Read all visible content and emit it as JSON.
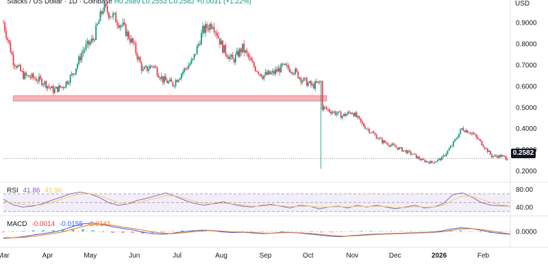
{
  "header": {
    "symbol": "Stacks / US Dollar · 1D · Coinbase",
    "ohlc": "H0.2689  L0.2553  C0.2582  +0.0031 (+1.22%)",
    "currency": "USD"
  },
  "rsi": {
    "label": "RSI",
    "value": "41.86",
    "ma": "41.96"
  },
  "macd": {
    "label": "MACD",
    "hist": "-0.0014",
    "macd": "-0.0155",
    "signal": "-0.0141"
  },
  "last_price": "0.2582",
  "chart_data": [
    {
      "type": "candlestick",
      "name": "price",
      "y_ticks": [
        "0.9000",
        "0.8000",
        "0.7000",
        "0.6000",
        "0.5000",
        "0.4000",
        "0.3000",
        "0.2000"
      ],
      "ylim": [
        0.16,
        1.0
      ],
      "x_ticks": [
        "Mar",
        "Apr",
        "May",
        "Jun",
        "Jul",
        "Aug",
        "Sep",
        "Oct",
        "Nov",
        "Dec",
        "2026",
        "Feb"
      ],
      "x_domain": [
        "2025-03-01",
        "2026-02-20"
      ],
      "close_series": {
        "dates": [
          "2025-03-01",
          "2025-03-08",
          "2025-03-15",
          "2025-03-22",
          "2025-03-29",
          "2025-04-05",
          "2025-04-12",
          "2025-04-19",
          "2025-04-26",
          "2025-05-03",
          "2025-05-10",
          "2025-05-17",
          "2025-05-24",
          "2025-05-31",
          "2025-06-07",
          "2025-06-14",
          "2025-06-21",
          "2025-06-28",
          "2025-07-05",
          "2025-07-12",
          "2025-07-19",
          "2025-07-26",
          "2025-08-02",
          "2025-08-09",
          "2025-08-16",
          "2025-08-23",
          "2025-08-30",
          "2025-09-06",
          "2025-09-13",
          "2025-09-20",
          "2025-09-27",
          "2025-10-04",
          "2025-10-10",
          "2025-10-11",
          "2025-10-18",
          "2025-10-25",
          "2025-11-01",
          "2025-11-08",
          "2025-11-15",
          "2025-11-22",
          "2025-11-29",
          "2025-12-06",
          "2025-12-13",
          "2025-12-20",
          "2025-12-27",
          "2026-01-03",
          "2026-01-10",
          "2026-01-17",
          "2026-01-24",
          "2026-01-31",
          "2026-02-07",
          "2026-02-14",
          "2026-02-18"
        ],
        "values": [
          0.9,
          0.72,
          0.65,
          0.64,
          0.62,
          0.58,
          0.6,
          0.66,
          0.77,
          0.82,
          0.97,
          0.93,
          0.88,
          0.8,
          0.67,
          0.7,
          0.63,
          0.61,
          0.67,
          0.72,
          0.86,
          0.9,
          0.78,
          0.72,
          0.78,
          0.7,
          0.65,
          0.66,
          0.69,
          0.68,
          0.63,
          0.6,
          0.62,
          0.5,
          0.48,
          0.46,
          0.48,
          0.42,
          0.38,
          0.34,
          0.32,
          0.3,
          0.28,
          0.25,
          0.24,
          0.26,
          0.32,
          0.4,
          0.38,
          0.33,
          0.27,
          0.27,
          0.2582
        ]
      },
      "annotations": [
        {
          "type": "support_zone",
          "from": "2025-03-08",
          "to": "2025-10-14",
          "y_low": 0.53,
          "y_high": 0.555,
          "color": "#f5b4b7"
        }
      ],
      "extremes": {
        "high": {
          "date": "2025-05-14",
          "value": 0.98
        },
        "low_wick": {
          "date": "2025-10-10",
          "value": 0.21
        }
      },
      "last_price": 0.2582
    },
    {
      "type": "line",
      "name": "RSI",
      "y_ticks": [
        "80.00",
        "40.00"
      ],
      "ylim": [
        25,
        90
      ],
      "levels": [
        70,
        50,
        30
      ],
      "series": [
        {
          "name": "RSI",
          "color": "#7e57c2",
          "values": [
            58,
            45,
            40,
            42,
            47,
            55,
            62,
            70,
            74,
            70,
            62,
            50,
            44,
            47,
            55,
            60,
            66,
            72,
            64,
            55,
            48,
            44,
            48,
            52,
            46,
            42,
            40,
            44,
            46,
            42,
            38,
            44,
            42,
            36,
            40,
            42,
            38,
            44,
            40,
            44,
            40,
            36,
            40,
            44,
            38,
            40,
            48,
            68,
            72,
            62,
            50,
            44,
            43,
            41.86
          ]
        },
        {
          "name": "RSI MA",
          "color": "#f7c948",
          "values": [
            52,
            50,
            46,
            44,
            45,
            50,
            57,
            64,
            69,
            70,
            66,
            58,
            50,
            47,
            50,
            55,
            60,
            66,
            65,
            60,
            53,
            48,
            47,
            49,
            47,
            45,
            42,
            42,
            44,
            43,
            41,
            42,
            42,
            40,
            40,
            41,
            40,
            42,
            41,
            42,
            41,
            39,
            39,
            41,
            40,
            40,
            44,
            56,
            65,
            64,
            57,
            50,
            45,
            41.96
          ]
        }
      ]
    },
    {
      "type": "bar_line",
      "name": "MACD",
      "y_ticks": [
        "0.0000"
      ],
      "ylim": [
        -0.08,
        0.08
      ],
      "series": [
        {
          "name": "MACD",
          "color": "#2962ff",
          "values": [
            -0.04,
            -0.036,
            -0.03,
            -0.02,
            -0.012,
            -0.004,
            0.01,
            0.03,
            0.045,
            0.05,
            0.04,
            0.028,
            0.018,
            0.01,
            -0.004,
            -0.012,
            -0.016,
            -0.01,
            -0.002,
            0.004,
            0.008,
            0.006,
            -0.002,
            -0.006,
            -0.004,
            -0.008,
            -0.012,
            -0.01,
            -0.004,
            -0.006,
            -0.01,
            -0.016,
            -0.022,
            -0.028,
            -0.03,
            -0.024,
            -0.02,
            -0.016,
            -0.014,
            -0.012,
            -0.01,
            -0.008,
            -0.006,
            -0.004,
            0.002,
            0.014,
            0.022,
            0.018,
            0.008,
            -0.004,
            -0.012,
            -0.0155
          ]
        },
        {
          "name": "Signal",
          "color": "#ff6d00",
          "values": [
            -0.036,
            -0.036,
            -0.034,
            -0.028,
            -0.02,
            -0.012,
            -0.002,
            0.014,
            0.03,
            0.042,
            0.044,
            0.036,
            0.026,
            0.018,
            0.008,
            -0.002,
            -0.01,
            -0.012,
            -0.008,
            -0.002,
            0.004,
            0.006,
            0.002,
            -0.002,
            -0.003,
            -0.005,
            -0.009,
            -0.01,
            -0.007,
            -0.006,
            -0.008,
            -0.012,
            -0.017,
            -0.023,
            -0.027,
            -0.026,
            -0.023,
            -0.019,
            -0.016,
            -0.014,
            -0.012,
            -0.01,
            -0.008,
            -0.006,
            -0.002,
            0.006,
            0.015,
            0.017,
            0.012,
            0.004,
            -0.006,
            -0.0141
          ]
        }
      ],
      "histogram_last": -0.0014
    }
  ]
}
